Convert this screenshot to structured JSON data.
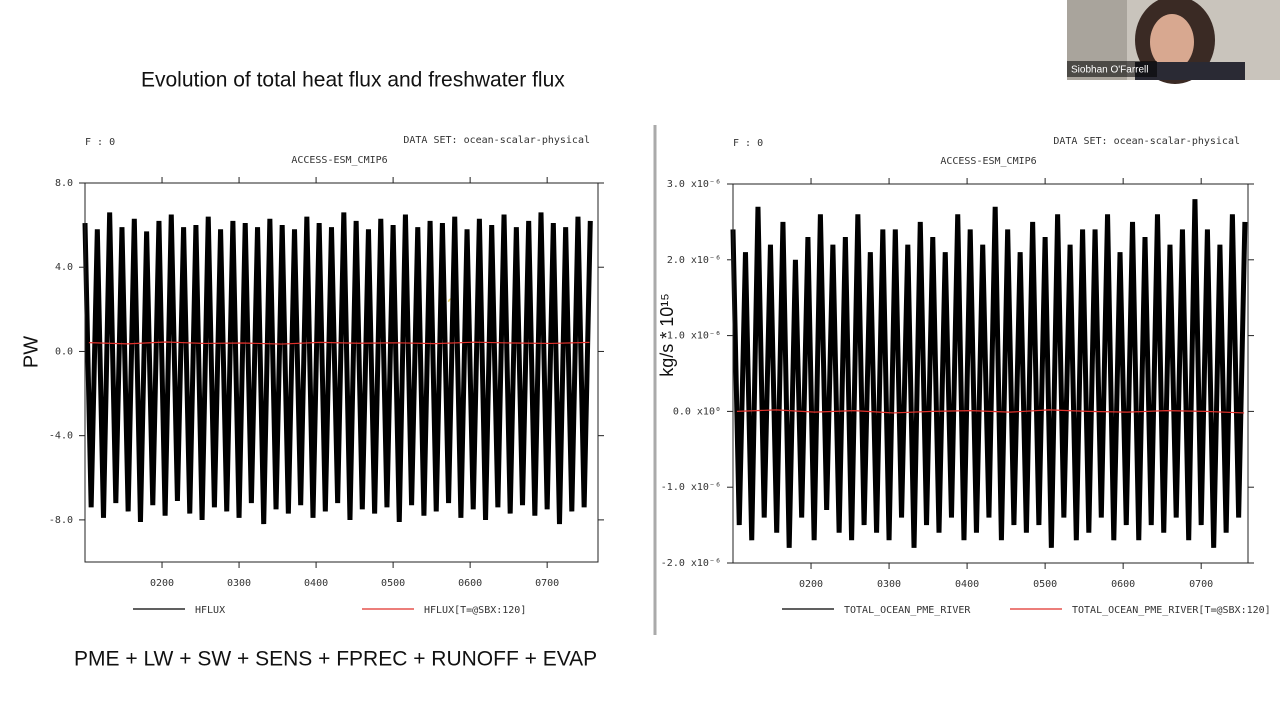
{
  "slide": {
    "title": "Evolution of total heat flux and freshwater flux",
    "formula": "PME + LW + SW + SENS + FPREC + RUNOFF + EVAP",
    "presenter": "Siobhan O'Farrell",
    "annotation": "?"
  },
  "chart_data": [
    {
      "type": "line",
      "frame_label": "F : 0",
      "dataset": "DATA SET: ocean-scalar-physical",
      "title": "ACCESS-ESM_CMIP6",
      "y_label": "PW",
      "xlim": [
        100,
        766
      ],
      "ylim": [
        -10,
        8
      ],
      "xticks": [
        {
          "value": 200,
          "label": "0200"
        },
        {
          "value": 300,
          "label": "0300"
        },
        {
          "value": 400,
          "label": "0400"
        },
        {
          "value": 500,
          "label": "0500"
        },
        {
          "value": 600,
          "label": "0600"
        },
        {
          "value": 700,
          "label": "0700"
        }
      ],
      "yticks": [
        {
          "value": -8,
          "label": "-8.0"
        },
        {
          "value": -4,
          "label": "-4.0"
        },
        {
          "value": 0,
          "label": "0.0"
        },
        {
          "value": 4,
          "label": "4.0"
        },
        {
          "value": 8,
          "label": "8.0"
        }
      ],
      "x": [
        100,
        108,
        116,
        124,
        132,
        140,
        148,
        156,
        164,
        172,
        180,
        188,
        196,
        204,
        212,
        220,
        228,
        236,
        244,
        252,
        260,
        268,
        276,
        284,
        292,
        300,
        308,
        316,
        324,
        332,
        340,
        348,
        356,
        364,
        372,
        380,
        388,
        396,
        404,
        412,
        420,
        428,
        436,
        444,
        452,
        460,
        468,
        476,
        484,
        492,
        500,
        508,
        516,
        524,
        532,
        540,
        548,
        556,
        564,
        572,
        580,
        588,
        596,
        604,
        612,
        620,
        628,
        636,
        644,
        652,
        660,
        668,
        676,
        684,
        692,
        700,
        708,
        716,
        724,
        732,
        740,
        748,
        756
      ],
      "series": [
        {
          "name": "HFLUX",
          "color": "#000000",
          "values": [
            6.1,
            -7.4,
            5.8,
            -7.9,
            6.6,
            -7.2,
            5.9,
            -7.6,
            6.3,
            -8.1,
            5.7,
            -7.3,
            6.2,
            -7.8,
            6.5,
            -7.1,
            5.9,
            -7.7,
            6.0,
            -8.0,
            6.4,
            -7.4,
            5.8,
            -7.6,
            6.2,
            -7.9,
            6.1,
            -7.2,
            5.9,
            -8.2,
            6.3,
            -7.5,
            6.0,
            -7.7,
            5.8,
            -7.3,
            6.4,
            -7.9,
            6.1,
            -7.6,
            5.9,
            -7.2,
            6.6,
            -8.0,
            6.2,
            -7.5,
            5.8,
            -7.7,
            6.3,
            -7.4,
            6.0,
            -8.1,
            6.5,
            -7.3,
            5.9,
            -7.8,
            6.2,
            -7.6,
            6.1,
            -7.2,
            6.4,
            -7.9,
            5.8,
            -7.5,
            6.3,
            -8.0,
            6.0,
            -7.4,
            6.5,
            -7.7,
            5.9,
            -7.3,
            6.2,
            -7.8,
            6.6,
            -7.5,
            6.1,
            -8.2,
            5.9,
            -7.6,
            6.4,
            -7.4,
            6.2
          ]
        },
        {
          "name": "HFLUX[T=@SBX:120]",
          "color": "#e0302a",
          "x": [
            105,
            155,
            205,
            255,
            305,
            355,
            405,
            455,
            505,
            555,
            605,
            655,
            705,
            755
          ],
          "values": [
            0.42,
            0.36,
            0.45,
            0.38,
            0.4,
            0.35,
            0.43,
            0.39,
            0.41,
            0.37,
            0.44,
            0.4,
            0.38,
            0.43
          ]
        }
      ]
    },
    {
      "type": "line",
      "frame_label": "F : 0",
      "dataset": "DATA SET: ocean-scalar-physical",
      "title": "ACCESS-ESM_CMIP6",
      "y_label": "kg/s * 10¹⁵",
      "xlim": [
        100,
        760
      ],
      "ylim": [
        -2e-06,
        3e-06
      ],
      "xticks": [
        {
          "value": 200,
          "label": "0200"
        },
        {
          "value": 300,
          "label": "0300"
        },
        {
          "value": 400,
          "label": "0400"
        },
        {
          "value": 500,
          "label": "0500"
        },
        {
          "value": 600,
          "label": "0600"
        },
        {
          "value": 700,
          "label": "0700"
        }
      ],
      "yticks": [
        {
          "value": -2e-06,
          "label": "-2.0 x10⁻⁶"
        },
        {
          "value": -1e-06,
          "label": "-1.0 x10⁻⁶"
        },
        {
          "value": 0,
          "label": "0.0 x10⁰"
        },
        {
          "value": 1e-06,
          "label": "1.0 x10⁻⁶"
        },
        {
          "value": 2e-06,
          "label": "2.0 x10⁻⁶"
        },
        {
          "value": 3e-06,
          "label": "3.0 x10⁻⁶"
        }
      ],
      "x": [
        100,
        108,
        116,
        124,
        132,
        140,
        148,
        156,
        164,
        172,
        180,
        188,
        196,
        204,
        212,
        220,
        228,
        236,
        244,
        252,
        260,
        268,
        276,
        284,
        292,
        300,
        308,
        316,
        324,
        332,
        340,
        348,
        356,
        364,
        372,
        380,
        388,
        396,
        404,
        412,
        420,
        428,
        436,
        444,
        452,
        460,
        468,
        476,
        484,
        492,
        500,
        508,
        516,
        524,
        532,
        540,
        548,
        556,
        564,
        572,
        580,
        588,
        596,
        604,
        612,
        620,
        628,
        636,
        644,
        652,
        660,
        668,
        676,
        684,
        692,
        700,
        708,
        716,
        724,
        732,
        740,
        748,
        756
      ],
      "series": [
        {
          "name": "TOTAL_OCEAN_PME_RIVER",
          "color": "#000000",
          "values": [
            2.4e-06,
            -1.5e-06,
            2.1e-06,
            -1.7e-06,
            2.7e-06,
            -1.4e-06,
            2.2e-06,
            -1.6e-06,
            2.5e-06,
            -1.8e-06,
            2e-06,
            -1.4e-06,
            2.3e-06,
            -1.7e-06,
            2.6e-06,
            -1.3e-06,
            2.2e-06,
            -1.6e-06,
            2.3e-06,
            -1.7e-06,
            2.6e-06,
            -1.5e-06,
            2.1e-06,
            -1.6e-06,
            2.4e-06,
            -1.7e-06,
            2.4e-06,
            -1.4e-06,
            2.2e-06,
            -1.8e-06,
            2.5e-06,
            -1.5e-06,
            2.3e-06,
            -1.6e-06,
            2.1e-06,
            -1.4e-06,
            2.6e-06,
            -1.7e-06,
            2.4e-06,
            -1.6e-06,
            2.2e-06,
            -1.4e-06,
            2.7e-06,
            -1.7e-06,
            2.4e-06,
            -1.5e-06,
            2.1e-06,
            -1.6e-06,
            2.5e-06,
            -1.5e-06,
            2.3e-06,
            -1.8e-06,
            2.6e-06,
            -1.4e-06,
            2.2e-06,
            -1.7e-06,
            2.4e-06,
            -1.6e-06,
            2.4e-06,
            -1.4e-06,
            2.6e-06,
            -1.7e-06,
            2.1e-06,
            -1.5e-06,
            2.5e-06,
            -1.7e-06,
            2.3e-06,
            -1.5e-06,
            2.6e-06,
            -1.6e-06,
            2.2e-06,
            -1.4e-06,
            2.4e-06,
            -1.7e-06,
            2.8e-06,
            -1.5e-06,
            2.4e-06,
            -1.8e-06,
            2.2e-06,
            -1.6e-06,
            2.6e-06,
            -1.4e-06,
            2.5e-06
          ]
        },
        {
          "name": "TOTAL_OCEAN_PME_RIVER[T=@SBX:120]",
          "color": "#e0302a",
          "x": [
            105,
            155,
            205,
            255,
            305,
            355,
            405,
            455,
            505,
            555,
            605,
            655,
            705,
            755
          ],
          "values": [
            0,
            2e-08,
            -1e-08,
            1e-08,
            -2e-08,
            0,
            1e-08,
            -1e-08,
            2e-08,
            0,
            -1e-08,
            1e-08,
            0,
            -2e-08
          ]
        }
      ]
    }
  ]
}
